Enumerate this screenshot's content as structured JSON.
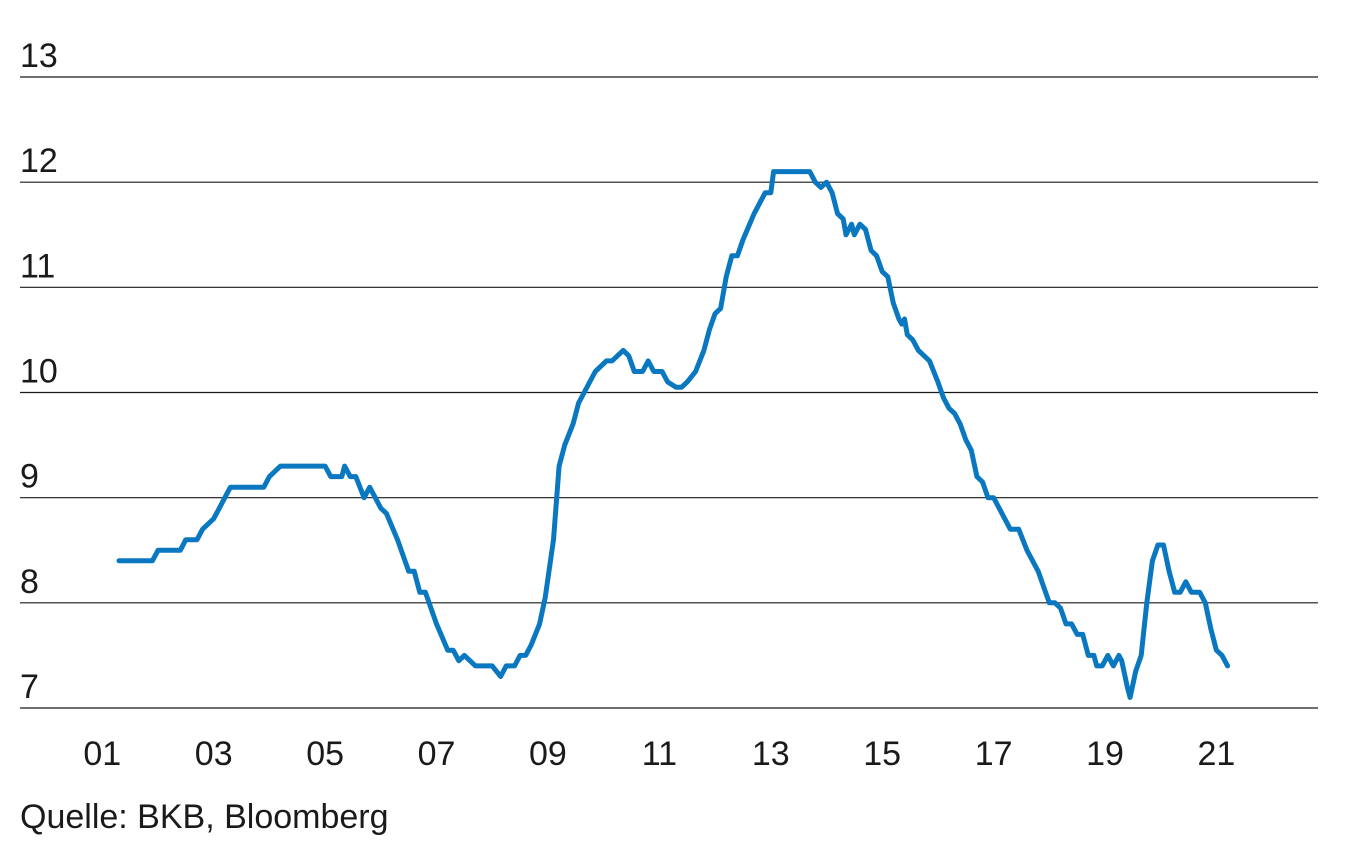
{
  "source": "Quelle: BKB, Bloomberg",
  "chart_data": {
    "type": "line",
    "title": "",
    "xlabel": "",
    "ylabel": "",
    "ylim": [
      7,
      13
    ],
    "yticks": [
      "7",
      "8",
      "9",
      "10",
      "11",
      "12",
      "13"
    ],
    "xticks": [
      {
        "label": "01",
        "x": 2001
      },
      {
        "label": "03",
        "x": 2003
      },
      {
        "label": "05",
        "x": 2005
      },
      {
        "label": "07",
        "x": 2007
      },
      {
        "label": "09",
        "x": 2009
      },
      {
        "label": "11",
        "x": 2011
      },
      {
        "label": "13",
        "x": 2013
      },
      {
        "label": "15",
        "x": 2015
      },
      {
        "label": "17",
        "x": 2017
      },
      {
        "label": "19",
        "x": 2019
      },
      {
        "label": "21",
        "x": 2021
      }
    ],
    "xlim": [
      2000.6,
      2022.5
    ],
    "grid": true,
    "line_color": "#0a78c0",
    "series": [
      {
        "values": [
          [
            2001.3,
            8.4
          ],
          [
            2001.9,
            8.4
          ],
          [
            2002.0,
            8.5
          ],
          [
            2002.4,
            8.5
          ],
          [
            2002.5,
            8.6
          ],
          [
            2002.7,
            8.6
          ],
          [
            2002.8,
            8.7
          ],
          [
            2003.0,
            8.8
          ],
          [
            2003.1,
            8.9
          ],
          [
            2003.2,
            9.0
          ],
          [
            2003.3,
            9.1
          ],
          [
            2003.9,
            9.1
          ],
          [
            2004.0,
            9.2
          ],
          [
            2004.2,
            9.3
          ],
          [
            2005.0,
            9.3
          ],
          [
            2005.1,
            9.2
          ],
          [
            2005.3,
            9.2
          ],
          [
            2005.35,
            9.3
          ],
          [
            2005.45,
            9.2
          ],
          [
            2005.55,
            9.2
          ],
          [
            2005.7,
            9.0
          ],
          [
            2005.8,
            9.1
          ],
          [
            2005.9,
            9.0
          ],
          [
            2006.0,
            8.9
          ],
          [
            2006.1,
            8.85
          ],
          [
            2006.3,
            8.6
          ],
          [
            2006.5,
            8.3
          ],
          [
            2006.6,
            8.3
          ],
          [
            2006.7,
            8.1
          ],
          [
            2006.8,
            8.1
          ],
          [
            2007.0,
            7.8
          ],
          [
            2007.2,
            7.55
          ],
          [
            2007.3,
            7.55
          ],
          [
            2007.4,
            7.45
          ],
          [
            2007.5,
            7.5
          ],
          [
            2007.7,
            7.4
          ],
          [
            2007.9,
            7.4
          ],
          [
            2008.0,
            7.4
          ],
          [
            2008.15,
            7.3
          ],
          [
            2008.25,
            7.4
          ],
          [
            2008.4,
            7.4
          ],
          [
            2008.5,
            7.5
          ],
          [
            2008.6,
            7.5
          ],
          [
            2008.7,
            7.6
          ],
          [
            2008.85,
            7.8
          ],
          [
            2008.95,
            8.05
          ],
          [
            2009.1,
            8.6
          ],
          [
            2009.2,
            9.3
          ],
          [
            2009.3,
            9.5
          ],
          [
            2009.45,
            9.7
          ],
          [
            2009.55,
            9.9
          ],
          [
            2009.65,
            10.0
          ],
          [
            2009.75,
            10.1
          ],
          [
            2009.85,
            10.2
          ],
          [
            2009.95,
            10.25
          ],
          [
            2010.05,
            10.3
          ],
          [
            2010.15,
            10.3
          ],
          [
            2010.25,
            10.35
          ],
          [
            2010.35,
            10.4
          ],
          [
            2010.45,
            10.35
          ],
          [
            2010.55,
            10.2
          ],
          [
            2010.7,
            10.2
          ],
          [
            2010.8,
            10.3
          ],
          [
            2010.9,
            10.2
          ],
          [
            2011.05,
            10.2
          ],
          [
            2011.15,
            10.1
          ],
          [
            2011.3,
            10.05
          ],
          [
            2011.4,
            10.05
          ],
          [
            2011.5,
            10.1
          ],
          [
            2011.65,
            10.2
          ],
          [
            2011.8,
            10.4
          ],
          [
            2011.9,
            10.6
          ],
          [
            2012.0,
            10.75
          ],
          [
            2012.1,
            10.8
          ],
          [
            2012.2,
            11.1
          ],
          [
            2012.3,
            11.3
          ],
          [
            2012.4,
            11.3
          ],
          [
            2012.5,
            11.45
          ],
          [
            2012.7,
            11.7
          ],
          [
            2012.9,
            11.9
          ],
          [
            2013.0,
            11.9
          ],
          [
            2013.05,
            12.1
          ],
          [
            2013.7,
            12.1
          ],
          [
            2013.8,
            12.0
          ],
          [
            2013.9,
            11.95
          ],
          [
            2014.0,
            12.0
          ],
          [
            2014.1,
            11.9
          ],
          [
            2014.2,
            11.7
          ],
          [
            2014.3,
            11.65
          ],
          [
            2014.35,
            11.5
          ],
          [
            2014.45,
            11.6
          ],
          [
            2014.5,
            11.5
          ],
          [
            2014.6,
            11.6
          ],
          [
            2014.7,
            11.55
          ],
          [
            2014.8,
            11.35
          ],
          [
            2014.9,
            11.3
          ],
          [
            2015.0,
            11.15
          ],
          [
            2015.1,
            11.1
          ],
          [
            2015.2,
            10.85
          ],
          [
            2015.3,
            10.7
          ],
          [
            2015.35,
            10.65
          ],
          [
            2015.4,
            10.7
          ],
          [
            2015.45,
            10.55
          ],
          [
            2015.55,
            10.5
          ],
          [
            2015.65,
            10.4
          ],
          [
            2015.75,
            10.35
          ],
          [
            2015.85,
            10.3
          ],
          [
            2016.0,
            10.1
          ],
          [
            2016.1,
            9.95
          ],
          [
            2016.2,
            9.85
          ],
          [
            2016.3,
            9.8
          ],
          [
            2016.4,
            9.7
          ],
          [
            2016.5,
            9.55
          ],
          [
            2016.6,
            9.45
          ],
          [
            2016.7,
            9.2
          ],
          [
            2016.8,
            9.15
          ],
          [
            2016.9,
            9.0
          ],
          [
            2017.0,
            9.0
          ],
          [
            2017.1,
            8.9
          ],
          [
            2017.2,
            8.8
          ],
          [
            2017.3,
            8.7
          ],
          [
            2017.45,
            8.7
          ],
          [
            2017.6,
            8.5
          ],
          [
            2017.8,
            8.3
          ],
          [
            2018.0,
            8.0
          ],
          [
            2018.1,
            8.0
          ],
          [
            2018.2,
            7.95
          ],
          [
            2018.3,
            7.8
          ],
          [
            2018.4,
            7.8
          ],
          [
            2018.5,
            7.7
          ],
          [
            2018.6,
            7.7
          ],
          [
            2018.7,
            7.5
          ],
          [
            2018.8,
            7.5
          ],
          [
            2018.85,
            7.4
          ],
          [
            2018.95,
            7.4
          ],
          [
            2019.05,
            7.5
          ],
          [
            2019.15,
            7.4
          ],
          [
            2019.25,
            7.5
          ],
          [
            2019.3,
            7.45
          ],
          [
            2019.4,
            7.2
          ],
          [
            2019.45,
            7.1
          ],
          [
            2019.55,
            7.35
          ],
          [
            2019.65,
            7.5
          ],
          [
            2019.75,
            8.0
          ],
          [
            2019.85,
            8.4
          ],
          [
            2019.95,
            8.55
          ],
          [
            2020.05,
            8.55
          ],
          [
            2020.15,
            8.3
          ],
          [
            2020.25,
            8.1
          ],
          [
            2020.35,
            8.1
          ],
          [
            2020.45,
            8.2
          ],
          [
            2020.55,
            8.1
          ],
          [
            2020.7,
            8.1
          ],
          [
            2020.8,
            8.0
          ],
          [
            2020.9,
            7.75
          ],
          [
            2021.0,
            7.55
          ],
          [
            2021.1,
            7.5
          ],
          [
            2021.2,
            7.4
          ]
        ]
      }
    ]
  }
}
